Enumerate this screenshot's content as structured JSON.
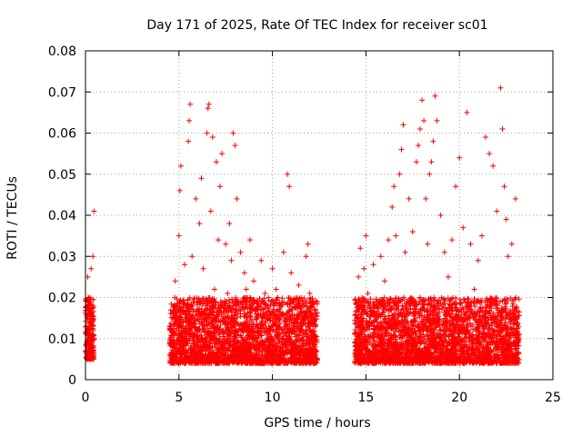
{
  "chart_data": {
    "type": "scatter",
    "title": "Day 171 of 2025, Rate Of TEC Index for receiver sc01",
    "xlabel": "GPS time / hours",
    "ylabel": "ROTI / TECUs",
    "xlim": [
      0,
      25
    ],
    "ylim": [
      0,
      0.08
    ],
    "xticks": [
      0,
      5,
      10,
      15,
      20,
      25
    ],
    "yticks": [
      0,
      0.01,
      0.02,
      0.03,
      0.04,
      0.05,
      0.06,
      0.07,
      0.08
    ],
    "xtick_labels": [
      "0",
      "5",
      "10",
      "15",
      "20",
      "25"
    ],
    "ytick_labels": [
      "0",
      "0.01",
      "0.02",
      "0.03",
      "0.04",
      "0.05",
      "0.06",
      "0.07",
      "0.08"
    ],
    "grid": true,
    "marker": "plus",
    "marker_color": "#ff0000",
    "series": [
      {
        "points": [
          [
            0.05,
            0.007
          ],
          [
            0.1,
            0.012
          ],
          [
            0.15,
            0.02
          ],
          [
            0.2,
            0.009
          ],
          [
            0.25,
            0.014
          ],
          [
            0.3,
            0.027
          ],
          [
            0.35,
            0.011
          ],
          [
            0.4,
            0.03
          ],
          [
            0.45,
            0.041
          ],
          [
            0.18,
            0.016
          ],
          [
            0.28,
            0.006
          ],
          [
            0.12,
            0.025
          ],
          [
            4.6,
            0.006
          ],
          [
            4.7,
            0.016
          ],
          [
            4.8,
            0.024
          ],
          [
            4.9,
            0.013
          ],
          [
            5.0,
            0.035
          ],
          [
            5.05,
            0.046
          ],
          [
            5.1,
            0.052
          ],
          [
            5.2,
            0.019
          ],
          [
            5.3,
            0.028
          ],
          [
            5.4,
            0.011
          ],
          [
            5.5,
            0.058
          ],
          [
            5.55,
            0.063
          ],
          [
            5.6,
            0.067
          ],
          [
            5.7,
            0.03
          ],
          [
            5.8,
            0.019
          ],
          [
            5.9,
            0.044
          ],
          [
            6.0,
            0.012
          ],
          [
            6.1,
            0.038
          ],
          [
            6.2,
            0.049
          ],
          [
            6.3,
            0.027
          ],
          [
            6.4,
            0.016
          ],
          [
            6.5,
            0.06
          ],
          [
            6.55,
            0.066
          ],
          [
            6.6,
            0.067
          ],
          [
            6.7,
            0.041
          ],
          [
            6.8,
            0.059
          ],
          [
            6.9,
            0.022
          ],
          [
            7.0,
            0.053
          ],
          [
            7.1,
            0.034
          ],
          [
            7.2,
            0.047
          ],
          [
            7.3,
            0.055
          ],
          [
            7.4,
            0.014
          ],
          [
            7.5,
            0.033
          ],
          [
            7.6,
            0.021
          ],
          [
            7.7,
            0.038
          ],
          [
            7.8,
            0.029
          ],
          [
            7.9,
            0.06
          ],
          [
            8.0,
            0.057
          ],
          [
            8.1,
            0.044
          ],
          [
            8.2,
            0.019
          ],
          [
            8.3,
            0.031
          ],
          [
            8.4,
            0.009
          ],
          [
            8.5,
            0.026
          ],
          [
            8.6,
            0.022
          ],
          [
            8.8,
            0.034
          ],
          [
            9.0,
            0.024
          ],
          [
            9.2,
            0.017
          ],
          [
            9.4,
            0.029
          ],
          [
            9.6,
            0.021
          ],
          [
            9.8,
            0.013
          ],
          [
            10.0,
            0.027
          ],
          [
            10.2,
            0.022
          ],
          [
            10.4,
            0.018
          ],
          [
            10.6,
            0.031
          ],
          [
            10.8,
            0.05
          ],
          [
            10.9,
            0.047
          ],
          [
            11.0,
            0.026
          ],
          [
            11.2,
            0.014
          ],
          [
            11.4,
            0.023
          ],
          [
            11.6,
            0.019
          ],
          [
            11.8,
            0.03
          ],
          [
            11.9,
            0.033
          ],
          [
            12.0,
            0.021
          ],
          [
            12.1,
            0.016
          ],
          [
            12.2,
            0.011
          ],
          [
            12.3,
            0.008
          ],
          [
            14.4,
            0.009
          ],
          [
            14.5,
            0.015
          ],
          [
            14.6,
            0.025
          ],
          [
            14.7,
            0.032
          ],
          [
            14.8,
            0.018
          ],
          [
            14.9,
            0.027
          ],
          [
            15.0,
            0.035
          ],
          [
            15.1,
            0.021
          ],
          [
            15.2,
            0.013
          ],
          [
            15.4,
            0.028
          ],
          [
            15.6,
            0.019
          ],
          [
            15.8,
            0.03
          ],
          [
            16.0,
            0.024
          ],
          [
            16.2,
            0.034
          ],
          [
            16.4,
            0.042
          ],
          [
            16.5,
            0.047
          ],
          [
            16.6,
            0.035
          ],
          [
            16.8,
            0.05
          ],
          [
            16.9,
            0.056
          ],
          [
            17.0,
            0.062
          ],
          [
            17.1,
            0.031
          ],
          [
            17.3,
            0.044
          ],
          [
            17.5,
            0.036
          ],
          [
            17.7,
            0.053
          ],
          [
            17.8,
            0.057
          ],
          [
            17.9,
            0.061
          ],
          [
            18.0,
            0.068
          ],
          [
            18.1,
            0.063
          ],
          [
            18.2,
            0.044
          ],
          [
            18.3,
            0.033
          ],
          [
            18.4,
            0.05
          ],
          [
            18.5,
            0.053
          ],
          [
            18.6,
            0.058
          ],
          [
            18.7,
            0.069
          ],
          [
            18.8,
            0.063
          ],
          [
            19.0,
            0.04
          ],
          [
            19.2,
            0.031
          ],
          [
            19.4,
            0.025
          ],
          [
            19.6,
            0.034
          ],
          [
            19.8,
            0.047
          ],
          [
            20.0,
            0.054
          ],
          [
            20.2,
            0.037
          ],
          [
            20.4,
            0.065
          ],
          [
            20.6,
            0.033
          ],
          [
            20.8,
            0.022
          ],
          [
            21.0,
            0.029
          ],
          [
            21.2,
            0.035
          ],
          [
            21.4,
            0.059
          ],
          [
            21.6,
            0.055
          ],
          [
            21.8,
            0.052
          ],
          [
            22.0,
            0.041
          ],
          [
            22.2,
            0.071
          ],
          [
            22.3,
            0.061
          ],
          [
            22.4,
            0.047
          ],
          [
            22.5,
            0.039
          ],
          [
            22.6,
            0.03
          ],
          [
            22.8,
            0.033
          ],
          [
            23.0,
            0.044
          ],
          [
            23.1,
            0.015
          ],
          [
            23.2,
            0.011
          ]
        ]
      }
    ],
    "dense_clusters": [
      {
        "x_start": 0.0,
        "x_end": 0.45,
        "y_low": 0.005,
        "y_high": 0.02
      },
      {
        "x_start": 4.5,
        "x_end": 12.4,
        "y_low": 0.004,
        "y_high": 0.02
      },
      {
        "x_start": 14.4,
        "x_end": 23.2,
        "y_low": 0.004,
        "y_high": 0.02
      }
    ]
  }
}
